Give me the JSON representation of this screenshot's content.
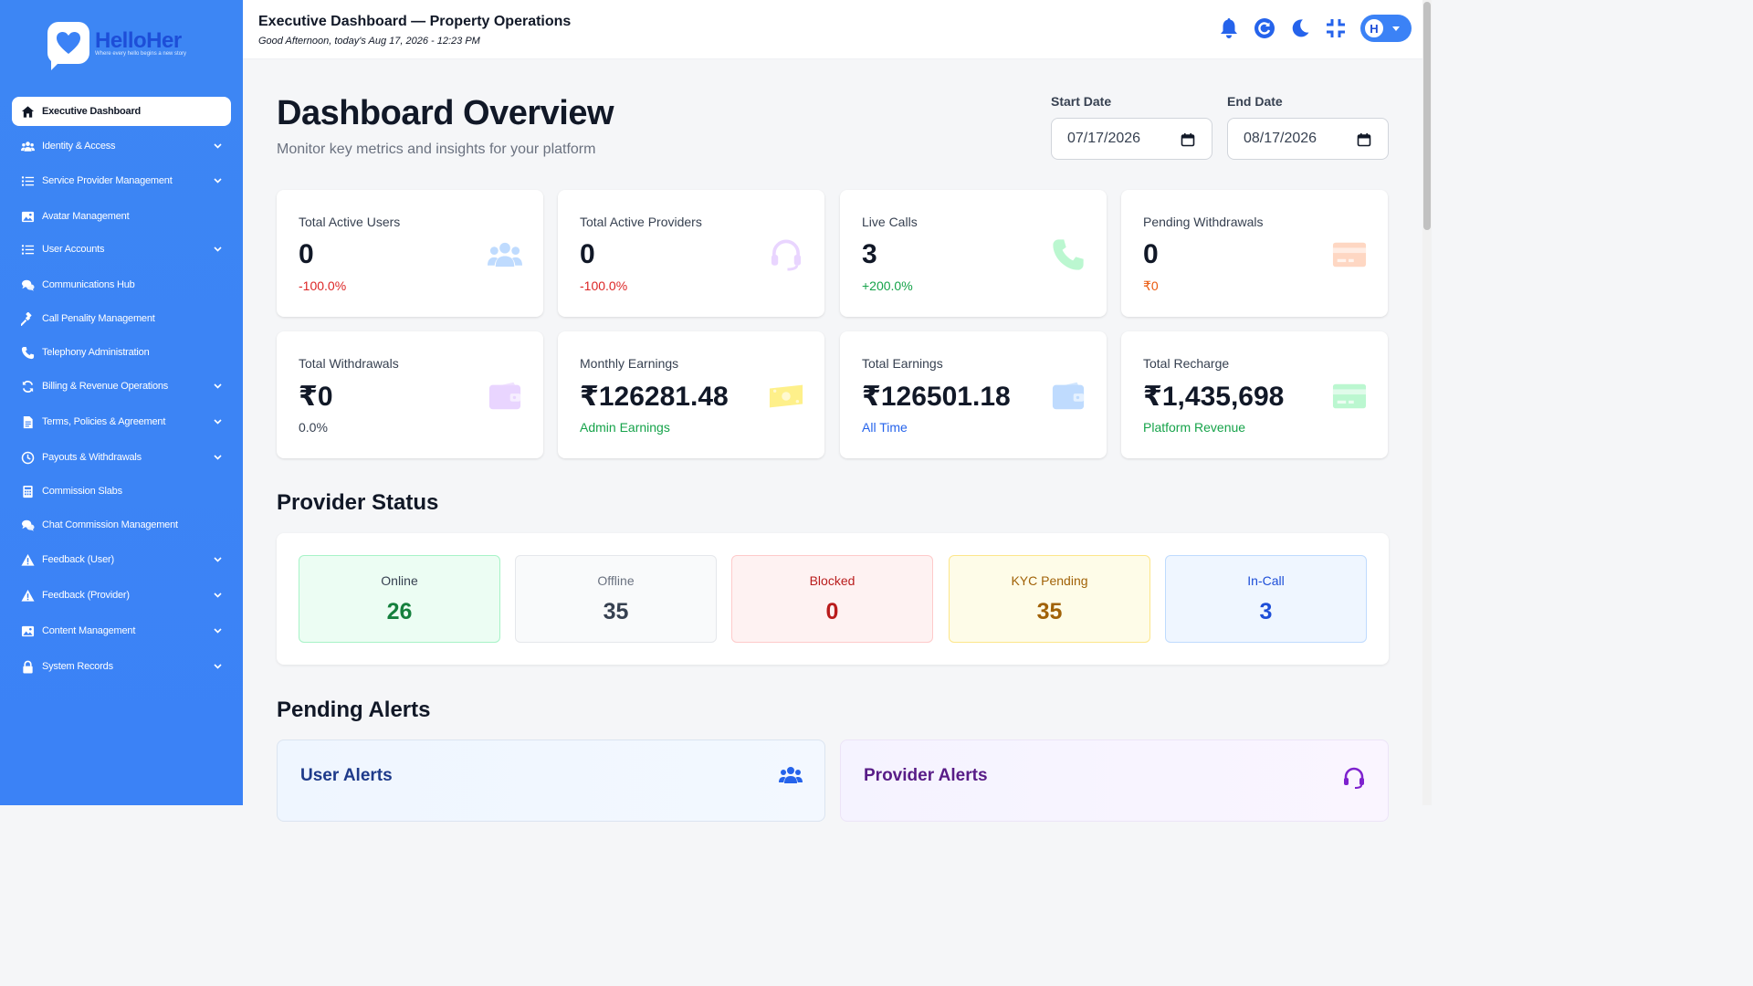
{
  "brand": {
    "name": "HelloHer",
    "tagline": "Where every hello begins a new story"
  },
  "sidebar": {
    "items": [
      {
        "label": "Executive Dashboard",
        "icon": "home-icon",
        "active": true,
        "chevron": false
      },
      {
        "label": "Identity & Access",
        "icon": "users-icon",
        "chevron": true
      },
      {
        "label": "Service Provider Management",
        "icon": "list-icon",
        "chevron": true
      },
      {
        "label": "Avatar Management",
        "icon": "image-icon",
        "chevron": false
      },
      {
        "label": "User Accounts",
        "icon": "list-icon",
        "chevron": true
      },
      {
        "label": "Communications Hub",
        "icon": "chat-icon",
        "chevron": false
      },
      {
        "label": "Call Penality Management",
        "icon": "gavel-icon",
        "chevron": false
      },
      {
        "label": "Telephony Administration",
        "icon": "phone-icon",
        "chevron": false
      },
      {
        "label": "Billing & Revenue Operations",
        "icon": "sync-icon",
        "chevron": true
      },
      {
        "label": "Terms, Policies & Agreement",
        "icon": "document-icon",
        "chevron": true
      },
      {
        "label": "Payouts & Withdrawals",
        "icon": "clock-icon",
        "chevron": true
      },
      {
        "label": "Commission Slabs",
        "icon": "calculator-icon",
        "chevron": false
      },
      {
        "label": "Chat Commission Management",
        "icon": "chat-icon",
        "chevron": false
      },
      {
        "label": "Feedback (User)",
        "icon": "warning-icon",
        "chevron": true
      },
      {
        "label": "Feedback (Provider)",
        "icon": "warning-icon",
        "chevron": true
      },
      {
        "label": "Content Management",
        "icon": "image-icon",
        "chevron": true
      },
      {
        "label": "System Records",
        "icon": "lock-icon",
        "chevron": true
      }
    ]
  },
  "header": {
    "title": "Executive Dashboard — Property Operations",
    "subtitle": "Good Afternoon, today's Aug 17, 2026 - 12:23 PM",
    "avatar_initial": "H"
  },
  "main": {
    "title": "Dashboard Overview",
    "subtitle": "Monitor key metrics and insights for your platform",
    "start_date": {
      "label": "Start Date",
      "value": "07/17/2026"
    },
    "end_date": {
      "label": "End Date",
      "value": "08/17/2026"
    }
  },
  "cards": [
    {
      "title": "Total Active Users",
      "value": "0",
      "sub": "-100.0%",
      "sub_color": "#dc2626",
      "icon": "users-icon",
      "icon_color": "#bfdbfe"
    },
    {
      "title": "Total Active Providers",
      "value": "0",
      "sub": "-100.0%",
      "sub_color": "#dc2626",
      "icon": "headset-icon",
      "icon_color": "#e9d5ff"
    },
    {
      "title": "Live Calls",
      "value": "3",
      "sub": "+200.0%",
      "sub_color": "#16a34a",
      "icon": "phone-icon",
      "icon_color": "#bbf7d0"
    },
    {
      "title": "Pending Withdrawals",
      "value": "0",
      "sub": "₹0",
      "sub_color": "#ea580c",
      "icon": "credit-card-icon",
      "icon_color": "#fed7c3"
    },
    {
      "title": "Total Withdrawals",
      "value": "₹0",
      "sub": "0.0%",
      "sub_color": "#374151",
      "icon": "wallet-icon",
      "icon_color": "#e9d5ff"
    },
    {
      "title": "Monthly Earnings",
      "value": "₹126281.48",
      "sub": "Admin Earnings",
      "sub_color": "#16a34a",
      "icon": "money-icon",
      "icon_color": "#fef08a"
    },
    {
      "title": "Total Earnings",
      "value": "₹126501.18",
      "sub": "All Time",
      "sub_color": "#2563eb",
      "icon": "wallet-icon",
      "icon_color": "#bfdbfe"
    },
    {
      "title": "Total Recharge",
      "value": "₹1,435,698",
      "sub": "Platform Revenue",
      "sub_color": "#16a34a",
      "icon": "credit-card-icon",
      "icon_color": "#bbf7d0"
    }
  ],
  "provider_status": {
    "title": "Provider Status",
    "items": [
      {
        "label": "Online",
        "value": "26",
        "bg": "#ecfdf3",
        "border": "#a7f3c7",
        "label_color": "#374151",
        "value_color": "#15803d"
      },
      {
        "label": "Offline",
        "value": "35",
        "bg": "#f9fafb",
        "border": "#e5e7eb",
        "label_color": "#6b7280",
        "value_color": "#374151"
      },
      {
        "label": "Blocked",
        "value": "0",
        "bg": "#fef2f2",
        "border": "#fecaca",
        "label_color": "#b91c1c",
        "value_color": "#b91c1c"
      },
      {
        "label": "KYC Pending",
        "value": "35",
        "bg": "#fefce8",
        "border": "#fde68a",
        "label_color": "#a16207",
        "value_color": "#a16207"
      },
      {
        "label": "In-Call",
        "value": "3",
        "bg": "#eff6ff",
        "border": "#bfdbfe",
        "label_color": "#1d4ed8",
        "value_color": "#1d4ed8"
      }
    ]
  },
  "pending_alerts": {
    "title": "Pending Alerts",
    "user_alerts": {
      "title": "User Alerts",
      "color": "#1e3a8a",
      "icon": "users-icon"
    },
    "provider_alerts": {
      "title": "Provider Alerts",
      "color": "#581c87",
      "icon": "headset-icon"
    }
  }
}
